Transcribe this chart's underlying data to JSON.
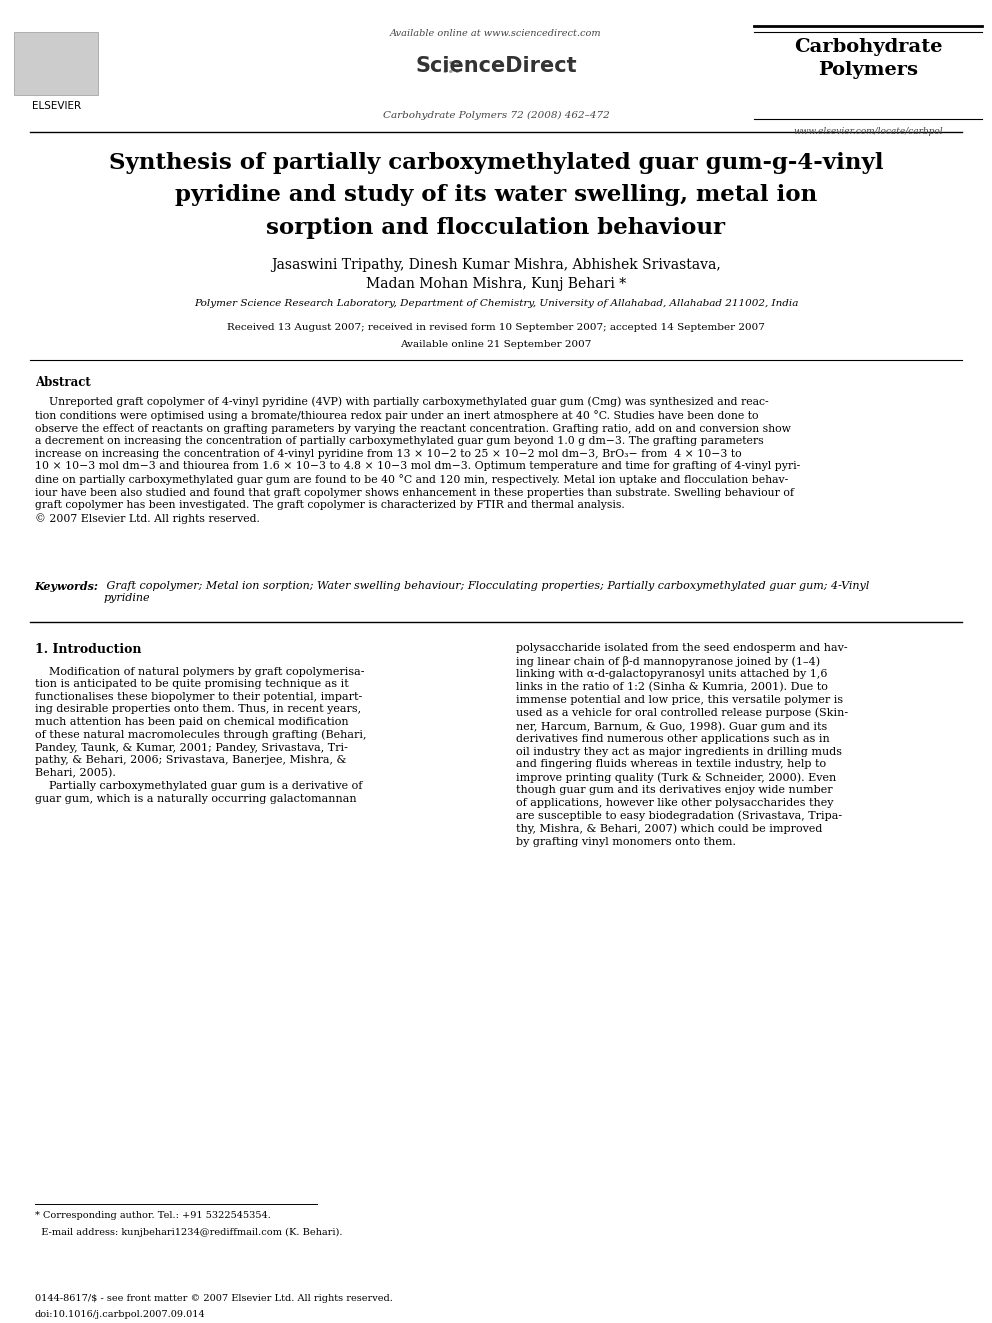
{
  "background_color": "#ffffff",
  "page_width": 9.92,
  "page_height": 13.23,
  "available_online": "Available online at www.sciencedirect.com",
  "sciencedirect": "ScienceDirect",
  "journal_name": "Carbohydrate\nPolymers",
  "journal_info": "Carbohydrate Polymers 72 (2008) 462–472",
  "website": "www.elsevier.com/locate/carbpol",
  "elsevier": "ELSEVIER",
  "title": "Synthesis of partially carboxymethylated guar gum-g-4-vinyl\npyridine and study of its water swelling, metal ion\nsorption and flocculation behaviour",
  "authors": "Jasaswini Tripathy, Dinesh Kumar Mishra, Abhishek Srivastava,\nMadan Mohan Mishra, Kunj Behari *",
  "affiliation": "Polymer Science Research Laboratory, Department of Chemistry, University of Allahabad, Allahabad 211002, India",
  "received_line1": "Received 13 August 2007; received in revised form 10 September 2007; accepted 14 September 2007",
  "received_line2": "Available online 21 September 2007",
  "abstract_heading": "Abstract",
  "abstract_text": "    Unreported graft copolymer of 4-vinyl pyridine (4VP) with partially carboxymethylated guar gum (Cmg) was synthesized and reac-\ntion conditions were optimised using a bromate/thiourea redox pair under an inert atmosphere at 40 °C. Studies have been done to\nobserve the effect of reactants on grafting parameters by varying the reactant concentration. Grafting ratio, add on and conversion show\na decrement on increasing the concentration of partially carboxymethylated guar gum beyond 1.0 g dm−3. The grafting parameters\nincrease on increasing the concentration of 4-vinyl pyridine from 13 × 10−2 to 25 × 10−2 mol dm−3, BrO₃− from  4 × 10−3 to\n10 × 10−3 mol dm−3 and thiourea from 1.6 × 10−3 to 4.8 × 10−3 mol dm−3. Optimum temperature and time for grafting of 4-vinyl pyri-\ndine on partially carboxymethylated guar gum are found to be 40 °C and 120 min, respectively. Metal ion uptake and flocculation behav-\niour have been also studied and found that graft copolymer shows enhancement in these properties than substrate. Swelling behaviour of\ngraft copolymer has been investigated. The graft copolymer is characterized by FTIR and thermal analysis.\n© 2007 Elsevier Ltd. All rights reserved.",
  "keywords_label": "Keywords:",
  "keywords_text": " Graft copolymer; Metal ion sorption; Water swelling behaviour; Flocculating properties; Partially carboxymethylated guar gum; 4-Vinyl\npyridine",
  "intro_heading": "1. Introduction",
  "intro_col1_line1": "    Modification of natural polymers by graft copolymerisa-",
  "intro_col1_line2": "tion is anticipated to be quite promising technique as it",
  "intro_col1_line3": "functionalises these biopolymer to their potential, impart-",
  "intro_col1_line4": "ing desirable properties onto them. Thus, in recent years,",
  "intro_col1_line5": "much attention has been paid on chemical modification",
  "intro_col1_line6": "of these natural macromolecules through grafting (Behari,",
  "intro_col1_line7": "Pandey, Taunk, & Kumar, 2001; Pandey, Srivastava, Tri-",
  "intro_col1_line8": "pathy, & Behari, 2006; Srivastava, Banerjee, Mishra, &",
  "intro_col1_line9": "Behari, 2005).",
  "intro_col1_line10": "    Partially carboxymethylated guar gum is a derivative of",
  "intro_col1_line11": "guar gum, which is a naturally occurring galactomannan",
  "intro_col2_line1": "polysaccharide isolated from the seed endosperm and hav-",
  "intro_col2_line2": "ing linear chain of β-d mannopyranose joined by (1–4)",
  "intro_col2_line3": "linking with α-d-galactopyranosyl units attached by 1,6",
  "intro_col2_line4": "links in the ratio of 1:2 (Sinha & Kumria, 2001). Due to",
  "intro_col2_line5": "immense potential and low price, this versatile polymer is",
  "intro_col2_line6": "used as a vehicle for oral controlled release purpose (Skin-",
  "intro_col2_line7": "ner, Harcum, Barnum, & Guo, 1998). Guar gum and its",
  "intro_col2_line8": "derivatives find numerous other applications such as in",
  "intro_col2_line9": "oil industry they act as major ingredients in drilling muds",
  "intro_col2_line10": "and fingering fluids whereas in textile industry, help to",
  "intro_col2_line11": "improve printing quality (Turk & Schneider, 2000). Even",
  "intro_col2_line12": "though guar gum and its derivatives enjoy wide number",
  "intro_col2_line13": "of applications, however like other polysaccharides they",
  "intro_col2_line14": "are susceptible to easy biodegradation (Srivastava, Tripa-",
  "intro_col2_line15": "thy, Mishra, & Behari, 2007) which could be improved",
  "intro_col2_line16": "by grafting vinyl monomers onto them.",
  "footnote_line1": "* Corresponding author. Tel.: +91 5322545354.",
  "footnote_line2": "  E-mail address: kunjbehari1234@rediffmail.com (K. Behari).",
  "footer_line1": "0144-8617/$ - see front matter © 2007 Elsevier Ltd. All rights reserved.",
  "footer_line2": "doi:10.1016/j.carbpol.2007.09.014"
}
